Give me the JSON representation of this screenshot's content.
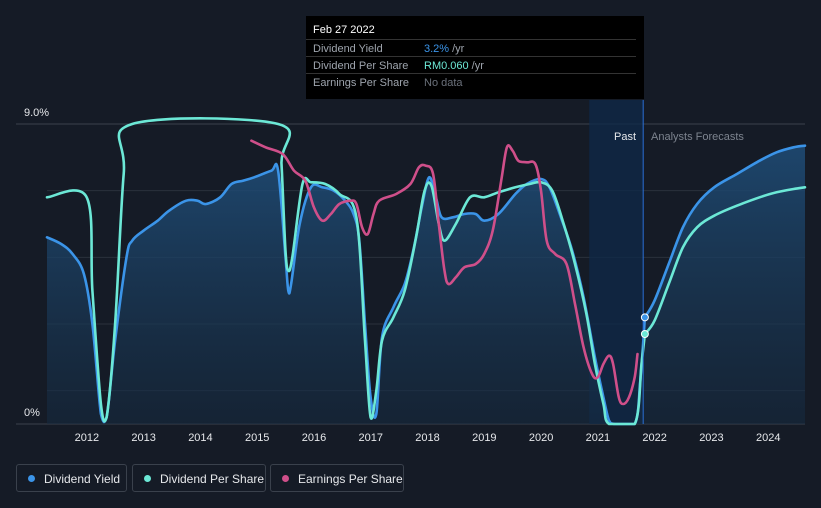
{
  "tooltip": {
    "date": "Feb 27 2022",
    "rows": [
      {
        "label": "Dividend Yield",
        "value": "3.2%",
        "unit": "/yr",
        "color": "#3b94e8"
      },
      {
        "label": "Dividend Per Share",
        "value": "RM0.060",
        "unit": "/yr",
        "color": "#6ce8d6"
      },
      {
        "label": "Earnings Per Share",
        "value": "No data",
        "unit": "",
        "color": "#6b717b"
      }
    ]
  },
  "legend": [
    {
      "label": "Dividend Yield",
      "color": "#3b94e8"
    },
    {
      "label": "Dividend Per Share",
      "color": "#6ce8d6"
    },
    {
      "label": "Earnings Per Share",
      "color": "#cf4f8a"
    }
  ],
  "chart_data": {
    "type": "line",
    "y_top_label": "9.0%",
    "y_bottom_label": "0%",
    "ylim": [
      0,
      9.0
    ],
    "xlim": [
      2011.65,
      2025.0
    ],
    "x_ticks": [
      "2012",
      "2013",
      "2014",
      "2015",
      "2016",
      "2017",
      "2018",
      "2019",
      "2020",
      "2021",
      "2022",
      "2023",
      "2024"
    ],
    "past_label": "Past",
    "forecast_label": "Analysts Forecasts",
    "past_region": [
      2021.2,
      2022.15
    ],
    "forecast_start": 2022.15,
    "series": [
      {
        "name": "Dividend Yield",
        "color": "#3b94e8",
        "fill": true,
        "points": [
          [
            2011.65,
            5.6
          ],
          [
            2011.9,
            5.4
          ],
          [
            2012.1,
            5.1
          ],
          [
            2012.3,
            4.5
          ],
          [
            2012.45,
            3.0
          ],
          [
            2012.6,
            0.3
          ],
          [
            2012.7,
            0.2
          ],
          [
            2012.85,
            2.5
          ],
          [
            2013.05,
            5.0
          ],
          [
            2013.15,
            5.5
          ],
          [
            2013.35,
            5.8
          ],
          [
            2013.6,
            6.1
          ],
          [
            2013.8,
            6.4
          ],
          [
            2014.1,
            6.7
          ],
          [
            2014.3,
            6.7
          ],
          [
            2014.45,
            6.6
          ],
          [
            2014.7,
            6.8
          ],
          [
            2014.9,
            7.2
          ],
          [
            2015.1,
            7.3
          ],
          [
            2015.3,
            7.4
          ],
          [
            2015.6,
            7.6
          ],
          [
            2015.72,
            7.6
          ],
          [
            2015.85,
            5.0
          ],
          [
            2015.9,
            4.0
          ],
          [
            2015.95,
            4.2
          ],
          [
            2016.1,
            6.0
          ],
          [
            2016.3,
            7.1
          ],
          [
            2016.5,
            7.1
          ],
          [
            2016.7,
            7.0
          ],
          [
            2016.9,
            6.7
          ],
          [
            2017.05,
            6.3
          ],
          [
            2017.15,
            5.5
          ],
          [
            2017.25,
            3.0
          ],
          [
            2017.35,
            0.8
          ],
          [
            2017.45,
            0.3
          ],
          [
            2017.55,
            2.6
          ],
          [
            2017.75,
            3.5
          ],
          [
            2017.95,
            4.2
          ],
          [
            2018.1,
            5.2
          ],
          [
            2018.25,
            6.5
          ],
          [
            2018.38,
            7.4
          ],
          [
            2018.5,
            6.8
          ],
          [
            2018.6,
            6.2
          ],
          [
            2018.8,
            6.2
          ],
          [
            2019.0,
            6.3
          ],
          [
            2019.2,
            6.3
          ],
          [
            2019.35,
            6.1
          ],
          [
            2019.6,
            6.3
          ],
          [
            2019.9,
            6.9
          ],
          [
            2020.1,
            7.2
          ],
          [
            2020.35,
            7.35
          ],
          [
            2020.5,
            7.1
          ],
          [
            2020.7,
            6.2
          ],
          [
            2020.9,
            5.2
          ],
          [
            2021.1,
            3.8
          ],
          [
            2021.3,
            2.0
          ],
          [
            2021.45,
            0.8
          ],
          [
            2021.55,
            0.1
          ],
          [
            2021.65,
            0.0
          ],
          [
            2022.0,
            0.0
          ],
          [
            2022.1,
            1.3
          ],
          [
            2022.18,
            3.2
          ]
        ]
      },
      {
        "name": "Dividend Yield (forecast)",
        "color": "#3b94e8",
        "fill": true,
        "points": [
          [
            2022.18,
            3.2
          ],
          [
            2022.35,
            3.7
          ],
          [
            2022.6,
            4.8
          ],
          [
            2022.85,
            5.9
          ],
          [
            2023.1,
            6.6
          ],
          [
            2023.4,
            7.1
          ],
          [
            2023.8,
            7.5
          ],
          [
            2024.2,
            7.9
          ],
          [
            2024.5,
            8.15
          ],
          [
            2024.8,
            8.3
          ],
          [
            2025.0,
            8.35
          ]
        ]
      },
      {
        "name": "Dividend Per Share",
        "color": "#6ce8d6",
        "fill": false,
        "points": [
          [
            2011.65,
            6.8
          ],
          [
            2012.35,
            6.8
          ],
          [
            2012.45,
            4.0
          ],
          [
            2012.6,
            0.6
          ],
          [
            2012.7,
            0.2
          ],
          [
            2012.85,
            3.0
          ],
          [
            2013.0,
            7.5
          ],
          [
            2013.15,
            9.0
          ],
          [
            2015.72,
            9.0
          ],
          [
            2015.78,
            7.8
          ],
          [
            2015.85,
            5.2
          ],
          [
            2015.9,
            4.6
          ],
          [
            2015.97,
            5.0
          ],
          [
            2016.15,
            7.2
          ],
          [
            2016.3,
            7.25
          ],
          [
            2016.55,
            7.2
          ],
          [
            2016.8,
            6.9
          ],
          [
            2017.1,
            6.2
          ],
          [
            2017.25,
            2.5
          ],
          [
            2017.35,
            0.2
          ],
          [
            2017.45,
            1.0
          ],
          [
            2017.55,
            2.5
          ],
          [
            2017.75,
            3.2
          ],
          [
            2017.95,
            4.0
          ],
          [
            2018.15,
            5.6
          ],
          [
            2018.3,
            7.0
          ],
          [
            2018.42,
            7.15
          ],
          [
            2018.55,
            6.0
          ],
          [
            2018.65,
            5.5
          ],
          [
            2018.85,
            6.0
          ],
          [
            2019.1,
            6.8
          ],
          [
            2019.35,
            6.8
          ],
          [
            2019.6,
            6.95
          ],
          [
            2019.9,
            7.1
          ],
          [
            2020.15,
            7.2
          ],
          [
            2020.35,
            7.25
          ],
          [
            2020.55,
            7.0
          ],
          [
            2020.75,
            6.0
          ],
          [
            2020.95,
            4.8
          ],
          [
            2021.15,
            3.3
          ],
          [
            2021.3,
            1.8
          ],
          [
            2021.45,
            0.6
          ],
          [
            2021.55,
            0.0
          ],
          [
            2022.0,
            0.0
          ],
          [
            2022.12,
            1.8
          ],
          [
            2022.18,
            2.7
          ]
        ]
      },
      {
        "name": "Dividend Per Share (forecast)",
        "color": "#6ce8d6",
        "fill": false,
        "points": [
          [
            2022.18,
            2.7
          ],
          [
            2022.35,
            3.1
          ],
          [
            2022.6,
            4.2
          ],
          [
            2022.85,
            5.3
          ],
          [
            2023.1,
            5.9
          ],
          [
            2023.4,
            6.25
          ],
          [
            2023.8,
            6.55
          ],
          [
            2024.2,
            6.8
          ],
          [
            2024.5,
            6.95
          ],
          [
            2024.8,
            7.05
          ],
          [
            2025.0,
            7.1
          ]
        ]
      },
      {
        "name": "Earnings Per Share",
        "color": "#cf4f8a",
        "fill": false,
        "points": [
          [
            2015.25,
            8.5
          ],
          [
            2015.5,
            8.3
          ],
          [
            2015.8,
            8.1
          ],
          [
            2016.0,
            7.6
          ],
          [
            2016.2,
            7.3
          ],
          [
            2016.35,
            6.5
          ],
          [
            2016.5,
            6.1
          ],
          [
            2016.65,
            6.3
          ],
          [
            2016.8,
            6.6
          ],
          [
            2017.0,
            6.7
          ],
          [
            2017.1,
            6.6
          ],
          [
            2017.2,
            5.9
          ],
          [
            2017.3,
            5.7
          ],
          [
            2017.4,
            6.3
          ],
          [
            2017.5,
            6.7
          ],
          [
            2017.8,
            6.9
          ],
          [
            2018.05,
            7.2
          ],
          [
            2018.2,
            7.7
          ],
          [
            2018.32,
            7.75
          ],
          [
            2018.45,
            7.5
          ],
          [
            2018.55,
            6.0
          ],
          [
            2018.65,
            4.6
          ],
          [
            2018.72,
            4.2
          ],
          [
            2018.85,
            4.4
          ],
          [
            2019.0,
            4.7
          ],
          [
            2019.2,
            4.8
          ],
          [
            2019.35,
            5.1
          ],
          [
            2019.5,
            5.8
          ],
          [
            2019.65,
            7.3
          ],
          [
            2019.75,
            8.3
          ],
          [
            2019.85,
            8.2
          ],
          [
            2019.95,
            7.9
          ],
          [
            2020.1,
            7.85
          ],
          [
            2020.25,
            7.8
          ],
          [
            2020.35,
            7.0
          ],
          [
            2020.45,
            5.5
          ],
          [
            2020.6,
            5.1
          ],
          [
            2020.8,
            4.8
          ],
          [
            2020.95,
            3.6
          ],
          [
            2021.1,
            2.3
          ],
          [
            2021.25,
            1.5
          ],
          [
            2021.35,
            1.4
          ],
          [
            2021.45,
            1.8
          ],
          [
            2021.55,
            2.05
          ],
          [
            2021.62,
            1.8
          ],
          [
            2021.72,
            0.8
          ],
          [
            2021.8,
            0.6
          ],
          [
            2021.9,
            0.8
          ],
          [
            2022.0,
            1.4
          ],
          [
            2022.05,
            2.1
          ]
        ]
      }
    ],
    "markers": [
      {
        "x": 2022.18,
        "y": 3.2,
        "color": "#3b94e8"
      },
      {
        "x": 2022.18,
        "y": 2.7,
        "color": "#6ce8d6"
      }
    ]
  }
}
